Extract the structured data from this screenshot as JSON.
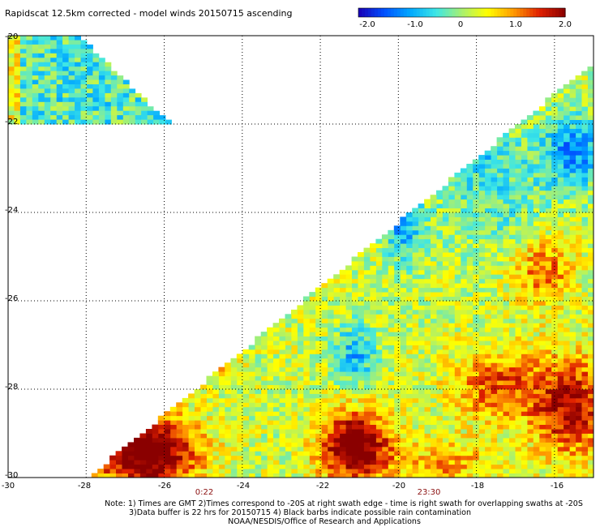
{
  "chart_data": {
    "type": "heatmap",
    "title": "Rapidscat 12.5km corrected - model winds 20150715 ascending",
    "xlabel": "",
    "ylabel": "",
    "xlim": [
      -30,
      -15
    ],
    "ylim": [
      -30,
      -20
    ],
    "x_ticks": [
      "-30",
      "-28",
      "-26",
      "-24",
      "-22",
      "-20",
      "-18",
      "-16"
    ],
    "y_ticks": [
      "-20",
      "-22",
      "-24",
      "-26",
      "-28",
      "-30"
    ],
    "grid": true,
    "colorbar": {
      "ticks": [
        "-2.0",
        "-1.0",
        "0",
        "1.0",
        "2.0"
      ],
      "range": [
        -2.0,
        2.0
      ],
      "colors": [
        "#1a00b5",
        "#0050ff",
        "#00a8ff",
        "#3de6e6",
        "#a8f070",
        "#ffff00",
        "#ff9a00",
        "#e02000",
        "#8a0000"
      ]
    },
    "swath_times": [
      "0:22",
      "23:30"
    ],
    "notes": [
      "Note: 1) Times are GMT 2)Times correspond to -20S at right swath edge - time is right swath for overlapping swaths at -20S",
      "3)Data buffer is 22 hrs for 20150715 4) Black barbs indicate possible rain contamination",
      "NOAA/NESDIS/Office of Research and Applications"
    ]
  }
}
